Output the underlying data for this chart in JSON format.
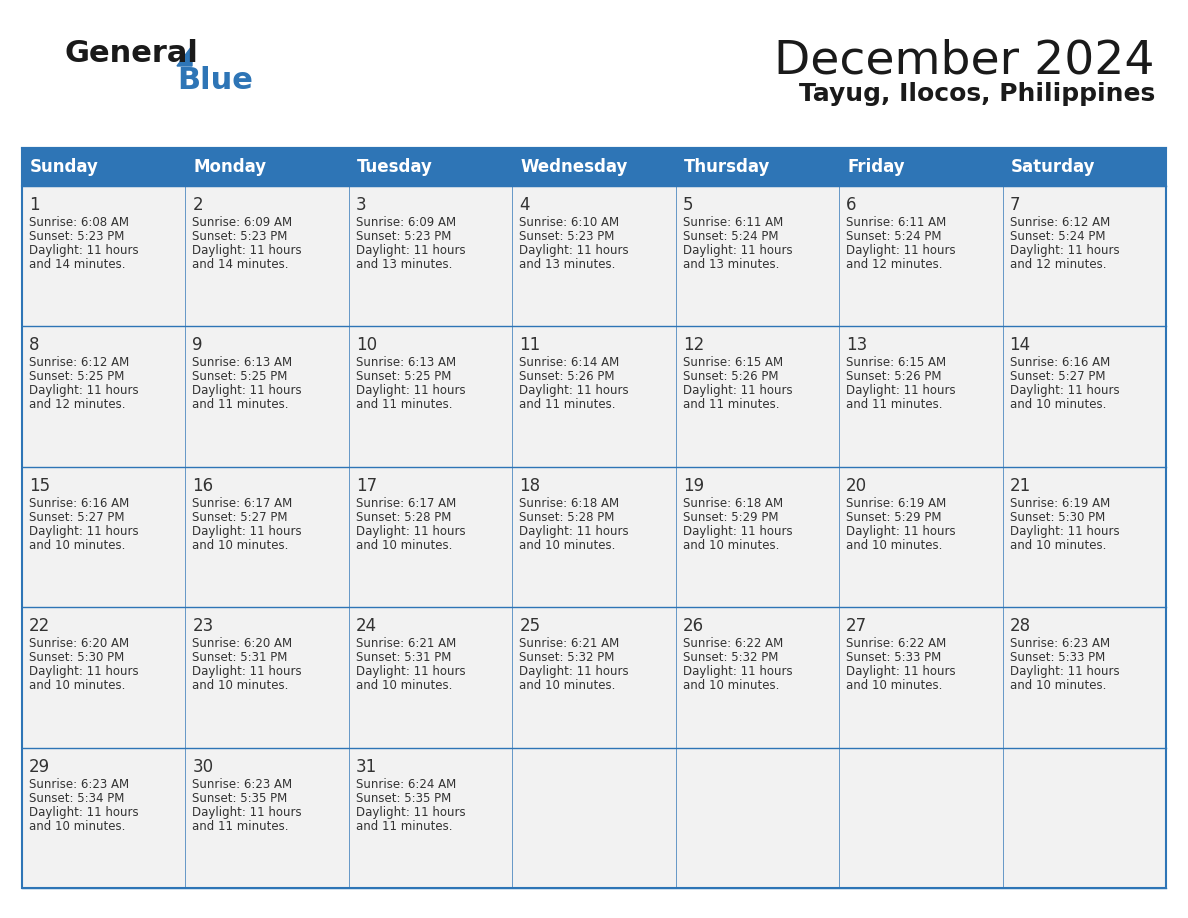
{
  "title": "December 2024",
  "subtitle": "Tayug, Ilocos, Philippines",
  "header_color": "#2E75B6",
  "header_text_color": "#FFFFFF",
  "background_color": "#FFFFFF",
  "cell_bg_color": "#F2F2F2",
  "days_of_week": [
    "Sunday",
    "Monday",
    "Tuesday",
    "Wednesday",
    "Thursday",
    "Friday",
    "Saturday"
  ],
  "calendar_data": [
    [
      {
        "day": 1,
        "sunrise": "6:08 AM",
        "sunset": "5:23 PM",
        "daylight": "11 hours and 14 minutes."
      },
      {
        "day": 2,
        "sunrise": "6:09 AM",
        "sunset": "5:23 PM",
        "daylight": "11 hours and 14 minutes."
      },
      {
        "day": 3,
        "sunrise": "6:09 AM",
        "sunset": "5:23 PM",
        "daylight": "11 hours and 13 minutes."
      },
      {
        "day": 4,
        "sunrise": "6:10 AM",
        "sunset": "5:23 PM",
        "daylight": "11 hours and 13 minutes."
      },
      {
        "day": 5,
        "sunrise": "6:11 AM",
        "sunset": "5:24 PM",
        "daylight": "11 hours and 13 minutes."
      },
      {
        "day": 6,
        "sunrise": "6:11 AM",
        "sunset": "5:24 PM",
        "daylight": "11 hours and 12 minutes."
      },
      {
        "day": 7,
        "sunrise": "6:12 AM",
        "sunset": "5:24 PM",
        "daylight": "11 hours and 12 minutes."
      }
    ],
    [
      {
        "day": 8,
        "sunrise": "6:12 AM",
        "sunset": "5:25 PM",
        "daylight": "11 hours and 12 minutes."
      },
      {
        "day": 9,
        "sunrise": "6:13 AM",
        "sunset": "5:25 PM",
        "daylight": "11 hours and 11 minutes."
      },
      {
        "day": 10,
        "sunrise": "6:13 AM",
        "sunset": "5:25 PM",
        "daylight": "11 hours and 11 minutes."
      },
      {
        "day": 11,
        "sunrise": "6:14 AM",
        "sunset": "5:26 PM",
        "daylight": "11 hours and 11 minutes."
      },
      {
        "day": 12,
        "sunrise": "6:15 AM",
        "sunset": "5:26 PM",
        "daylight": "11 hours and 11 minutes."
      },
      {
        "day": 13,
        "sunrise": "6:15 AM",
        "sunset": "5:26 PM",
        "daylight": "11 hours and 11 minutes."
      },
      {
        "day": 14,
        "sunrise": "6:16 AM",
        "sunset": "5:27 PM",
        "daylight": "11 hours and 10 minutes."
      }
    ],
    [
      {
        "day": 15,
        "sunrise": "6:16 AM",
        "sunset": "5:27 PM",
        "daylight": "11 hours and 10 minutes."
      },
      {
        "day": 16,
        "sunrise": "6:17 AM",
        "sunset": "5:27 PM",
        "daylight": "11 hours and 10 minutes."
      },
      {
        "day": 17,
        "sunrise": "6:17 AM",
        "sunset": "5:28 PM",
        "daylight": "11 hours and 10 minutes."
      },
      {
        "day": 18,
        "sunrise": "6:18 AM",
        "sunset": "5:28 PM",
        "daylight": "11 hours and 10 minutes."
      },
      {
        "day": 19,
        "sunrise": "6:18 AM",
        "sunset": "5:29 PM",
        "daylight": "11 hours and 10 minutes."
      },
      {
        "day": 20,
        "sunrise": "6:19 AM",
        "sunset": "5:29 PM",
        "daylight": "11 hours and 10 minutes."
      },
      {
        "day": 21,
        "sunrise": "6:19 AM",
        "sunset": "5:30 PM",
        "daylight": "11 hours and 10 minutes."
      }
    ],
    [
      {
        "day": 22,
        "sunrise": "6:20 AM",
        "sunset": "5:30 PM",
        "daylight": "11 hours and 10 minutes."
      },
      {
        "day": 23,
        "sunrise": "6:20 AM",
        "sunset": "5:31 PM",
        "daylight": "11 hours and 10 minutes."
      },
      {
        "day": 24,
        "sunrise": "6:21 AM",
        "sunset": "5:31 PM",
        "daylight": "11 hours and 10 minutes."
      },
      {
        "day": 25,
        "sunrise": "6:21 AM",
        "sunset": "5:32 PM",
        "daylight": "11 hours and 10 minutes."
      },
      {
        "day": 26,
        "sunrise": "6:22 AM",
        "sunset": "5:32 PM",
        "daylight": "11 hours and 10 minutes."
      },
      {
        "day": 27,
        "sunrise": "6:22 AM",
        "sunset": "5:33 PM",
        "daylight": "11 hours and 10 minutes."
      },
      {
        "day": 28,
        "sunrise": "6:23 AM",
        "sunset": "5:33 PM",
        "daylight": "11 hours and 10 minutes."
      }
    ],
    [
      {
        "day": 29,
        "sunrise": "6:23 AM",
        "sunset": "5:34 PM",
        "daylight": "11 hours and 10 minutes."
      },
      {
        "day": 30,
        "sunrise": "6:23 AM",
        "sunset": "5:35 PM",
        "daylight": "11 hours and 11 minutes."
      },
      {
        "day": 31,
        "sunrise": "6:24 AM",
        "sunset": "5:35 PM",
        "daylight": "11 hours and 11 minutes."
      },
      null,
      null,
      null,
      null
    ]
  ],
  "logo_text_general": "General",
  "logo_text_blue": "Blue",
  "line_color": "#2E75B6",
  "text_color": "#333333"
}
